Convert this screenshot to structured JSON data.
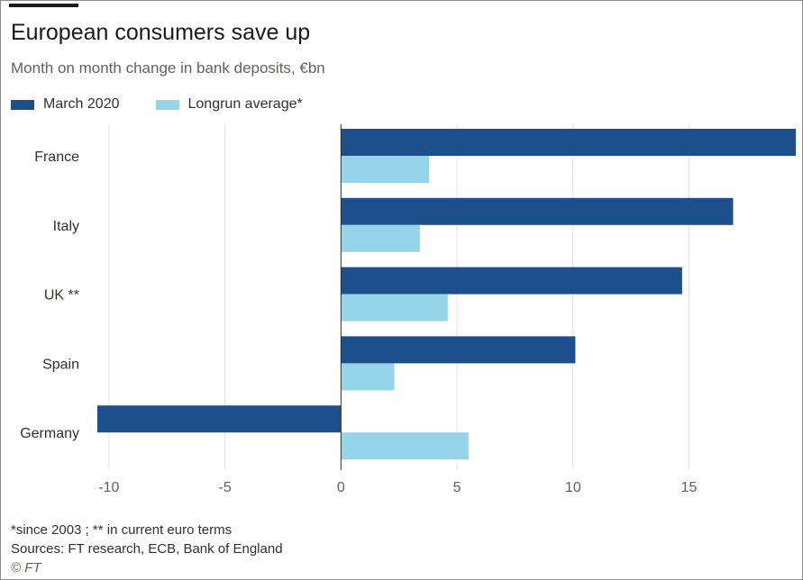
{
  "title": "European consumers save up",
  "subtitle": "Month on month change in bank deposits, €bn",
  "notes": {
    "footnote": "*since 2003 ; ** in current euro terms",
    "sources": "Sources: FT research, ECB, Bank of England",
    "credit": "© FT"
  },
  "colors": {
    "march_2020": "#1c4f8c",
    "longrun_average": "#96d4e9",
    "grid": "#e6e3df"
  },
  "chart_data": {
    "type": "bar",
    "orientation": "horizontal",
    "title": "European consumers save up",
    "subtitle": "Month on month change in bank deposits, €bn",
    "categories": [
      "France",
      "Italy",
      "UK **",
      "Spain",
      "Germany"
    ],
    "series": [
      {
        "name": "March 2020",
        "color": "#1c4f8c",
        "values": [
          19.6,
          16.9,
          14.7,
          10.1,
          -10.5
        ]
      },
      {
        "name": "Longrun average*",
        "color": "#96d4e9",
        "values": [
          3.8,
          3.4,
          4.6,
          2.3,
          5.5
        ]
      }
    ],
    "xlim": [
      -10.5,
      19.6
    ],
    "xticks": [
      -10,
      -5,
      0,
      5,
      10,
      15
    ],
    "xtick_labels": [
      "-10",
      "-5",
      "0",
      "5",
      "10",
      "15"
    ],
    "grid": true,
    "legend_position": "top-left"
  }
}
